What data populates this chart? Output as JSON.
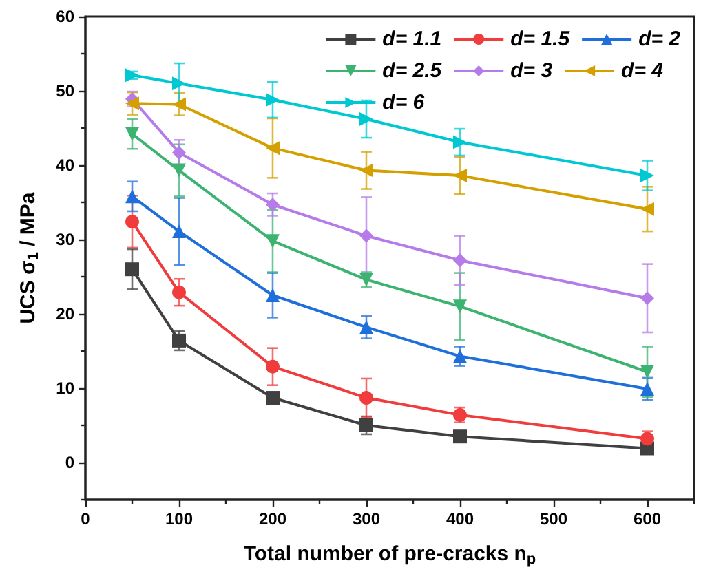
{
  "chart_data": {
    "type": "line",
    "xlabel": "Total number of pre-cracks n$_{p}$",
    "ylabel": "UCS σ$_{1}$ / MPa",
    "x": [
      50,
      100,
      200,
      300,
      400,
      600
    ],
    "xlim": [
      0,
      650
    ],
    "xticks": [
      0,
      100,
      200,
      300,
      400,
      500,
      600
    ],
    "ylim": [
      -5,
      60
    ],
    "yticks": [
      0,
      10,
      20,
      30,
      40,
      50,
      60
    ],
    "grid": false,
    "legend": "top right",
    "line_style": "solid",
    "series": [
      {
        "name": "d= 1.1",
        "color": "#404040",
        "marker": "square",
        "values": [
          26,
          16.4,
          8.7,
          5.0,
          3.5,
          1.9
        ],
        "errors": [
          2.7,
          1.3,
          0.7,
          1.2,
          0.3,
          0.3
        ]
      },
      {
        "name": "d= 1.5",
        "color": "#f03c3c",
        "marker": "circle",
        "values": [
          32.4,
          22.9,
          12.9,
          8.7,
          6.4,
          3.2
        ],
        "errors": [
          3.5,
          1.8,
          2.5,
          2.6,
          1.0,
          1.0
        ]
      },
      {
        "name": "d= 2",
        "color": "#1e6fd9",
        "marker": "triangle",
        "values": [
          35.8,
          31.1,
          22.5,
          18.2,
          14.3,
          9.9
        ],
        "errors": [
          2.0,
          4.5,
          3.0,
          1.5,
          1.3,
          1.5
        ]
      },
      {
        "name": "d= 2.5",
        "color": "#3cb371",
        "marker": "triangle-down",
        "values": [
          44.2,
          39.3,
          29.8,
          24.6,
          21.0,
          12.2
        ],
        "errors": [
          2.0,
          3.5,
          4.2,
          1.0,
          4.5,
          3.4
        ]
      },
      {
        "name": "d= 3",
        "color": "#b57be8",
        "marker": "diamond",
        "values": [
          48.9,
          41.7,
          34.7,
          30.5,
          27.2,
          22.1
        ],
        "errors": [
          1.0,
          1.7,
          1.5,
          5.2,
          3.3,
          4.6
        ]
      },
      {
        "name": "d= 4",
        "color": "#d4a000",
        "marker": "triangle-left",
        "values": [
          48.3,
          48.2,
          42.3,
          39.3,
          38.6,
          34.1
        ],
        "errors": [
          1.5,
          1.5,
          4.0,
          2.5,
          2.5,
          3.0
        ]
      },
      {
        "name": "d= 6",
        "color": "#00c8d2",
        "marker": "triangle-right",
        "values": [
          52.1,
          51.0,
          48.8,
          46.2,
          43.1,
          38.6
        ],
        "errors": [
          0.5,
          2.7,
          2.4,
          2.5,
          1.8,
          2.0
        ]
      }
    ]
  }
}
